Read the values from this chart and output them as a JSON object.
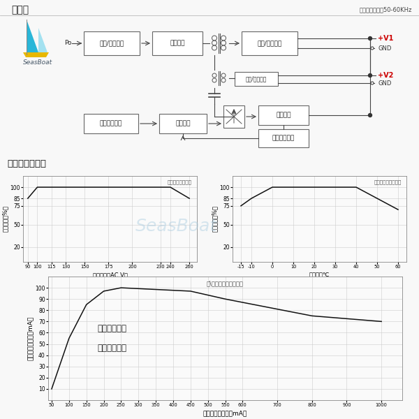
{
  "title_block": "方框图",
  "freq_label": "开关工作频率：50-60KHz",
  "brand": "SeasBoat",
  "section2_title": "全电压效率曲线",
  "lbl_rf1": "整流/滤波电路",
  "lbl_sw": "切换电路",
  "lbl_rf2": "整流/滤波电路",
  "lbl_rf3": "整流/滤波电路",
  "lbl_detect": "检测电路",
  "lbl_feedback": "电压返馈电路",
  "lbl_overload": "过载保护电路",
  "lbl_control": "控制电路",
  "chart1_title": "输入电压降额曲线",
  "chart1_ylabel": "负载电流（%）",
  "chart1_xlabel": "输入电压（AC V）",
  "chart1_xticks": [
    90,
    100,
    115,
    130,
    150,
    175,
    200,
    230,
    240,
    260
  ],
  "chart1_yticks": [
    20,
    50,
    75,
    85,
    100
  ],
  "chart1_x": [
    90,
    100,
    115,
    240,
    260
  ],
  "chart1_y": [
    85,
    100,
    100,
    100,
    85
  ],
  "chart2_title": "环境温度化减额曲线",
  "chart2_ylabel": "负载电流（%）",
  "chart2_xlabel": "环境温度℃",
  "chart2_xticks": [
    -15,
    -10,
    0,
    10,
    20,
    30,
    40,
    50,
    60
  ],
  "chart2_yticks": [
    20,
    50,
    75,
    85,
    100
  ],
  "chart2_x": [
    -15,
    -10,
    0,
    40,
    50,
    60
  ],
  "chart2_y": [
    75,
    85,
    100,
    100,
    85,
    70
  ],
  "chart3_title": "主\\辅电路负载关系曲线",
  "chart3_ylabel": "辅电路负载电流（mA）",
  "chart3_xlabel": "主电路负载电流（mA）",
  "chart3_xticks": [
    50,
    100,
    150,
    200,
    250,
    300,
    350,
    400,
    450,
    500,
    550,
    600,
    700,
    800,
    900,
    1000
  ],
  "chart3_yticks": [
    10,
    20,
    30,
    40,
    50,
    60,
    70,
    80,
    90,
    100
  ],
  "chart3_x": [
    50,
    100,
    150,
    200,
    250,
    450,
    550,
    800,
    1000
  ],
  "chart3_y": [
    10,
    55,
    85,
    97,
    100,
    97,
    90,
    75,
    70
  ],
  "chart3_note1": "主输出必须有",
  "chart3_note2": "一定负载功率",
  "bg_top": "#f5f5f5",
  "bg_bottom": "#ffffff",
  "block_fc": "#ffffff",
  "block_ec": "#666666",
  "line_col": "#444444",
  "red_col": "#cc0000",
  "divider_bg": "#e0e0e0",
  "chart_bg": "#ffffff",
  "grid_col": "#cccccc",
  "plot_col": "#111111",
  "watermark_col": "#aacce0"
}
